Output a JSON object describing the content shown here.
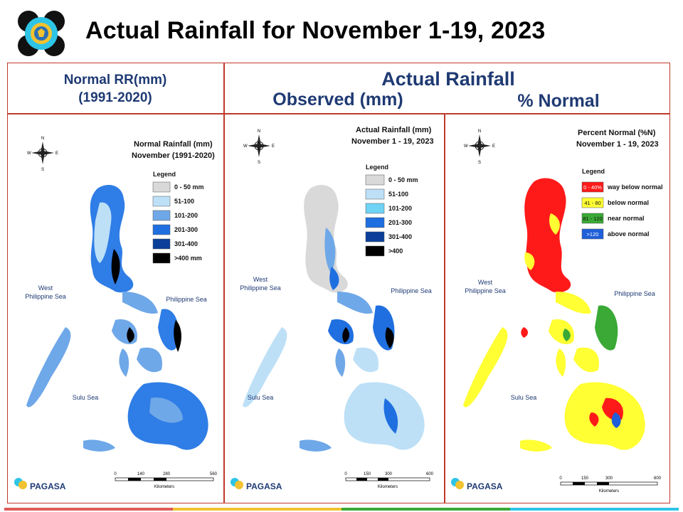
{
  "page": {
    "title": "Actual Rainfall for November 1-19, 2023"
  },
  "headers": {
    "normal_line1": "Normal RR(mm)",
    "normal_line2": "(1991-2020)",
    "actual": "Actual Rainfall",
    "observed": "Observed (mm)",
    "percent": "% Normal"
  },
  "colors": {
    "accent_border": "#c0392b",
    "header_text": "#1f3a73"
  },
  "panels": [
    {
      "title_line1": "Normal Rainfall (mm)",
      "title_line2": "November (1991-2020)",
      "legend_title": "Legend",
      "legend": [
        {
          "label": "0 - 50 mm",
          "color": "#d9d9d9"
        },
        {
          "label": "51-100",
          "color": "#bde0f7"
        },
        {
          "label": "101-200",
          "color": "#6fa8e8"
        },
        {
          "label": "201-300",
          "color": "#1f6fe0"
        },
        {
          "label": "301-400",
          "color": "#0b3f99"
        },
        {
          "label": ">400 mm",
          "color": "#000000"
        }
      ],
      "seas": {
        "west": "West",
        "west2": "Philippine Sea",
        "east": "Philippine Sea",
        "south": "Sulu Sea"
      },
      "scale": [
        "0",
        "140",
        "280",
        "560"
      ],
      "scale_unit": "Kilometers",
      "brand": "PAGASA"
    },
    {
      "title_line1": "Actual Rainfall (mm)",
      "title_line2": "November 1 - 19, 2023",
      "legend_title": "Legend",
      "legend": [
        {
          "label": "0 - 50 mm",
          "color": "#d9d9d9"
        },
        {
          "label": "51-100",
          "color": "#bde0f7"
        },
        {
          "label": "101-200",
          "color": "#6fd3f5"
        },
        {
          "label": "201-300",
          "color": "#1f6fe0"
        },
        {
          "label": "301-400",
          "color": "#0b3f99"
        },
        {
          "label": ">400",
          "color": "#000000"
        }
      ],
      "seas": {
        "west": "West",
        "west2": "Philippine Sea",
        "east": "Philippine Sea",
        "south": "Sulu Sea"
      },
      "scale": [
        "0",
        "150",
        "300",
        "600"
      ],
      "scale_unit": "Kilometers",
      "brand": "PAGASA"
    },
    {
      "title_line1": "Percent Normal (%N)",
      "title_line2": "November 1 - 19, 2023",
      "legend_title": "Legend",
      "legend": [
        {
          "label": "way below normal",
          "range": "0 - 40%",
          "color": "#ff1a1a"
        },
        {
          "label": "below normal",
          "range": "41 - 80",
          "color": "#ffff33"
        },
        {
          "label": "near normal",
          "range": "81 - 120",
          "color": "#3aa935"
        },
        {
          "label": "above normal",
          "range": ">120",
          "color": "#1f5fd9"
        }
      ],
      "seas": {
        "west": "West",
        "west2": "Philippine Sea",
        "east": "Philippine Sea",
        "south": "Sulu Sea"
      },
      "scale": [
        "0",
        "150",
        "300",
        "600"
      ],
      "scale_unit": "Kilometers",
      "brand": "PAGASA"
    }
  ]
}
